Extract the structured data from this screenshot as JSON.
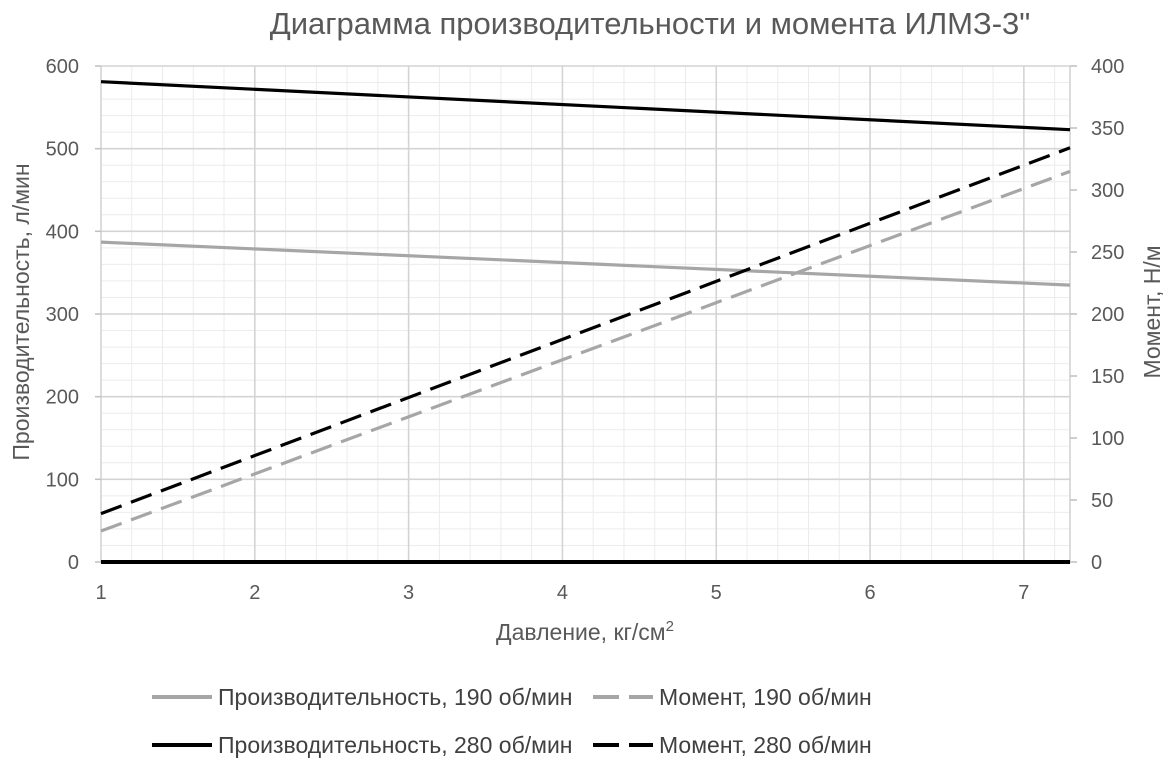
{
  "chart_data": {
    "type": "line",
    "title": "Диаграмма производительности и момента ИЛМЗ-3\"",
    "xlabel": "Давление, кг/см",
    "xlabel_sup": "2",
    "ylabel": "Производительность, л/мин",
    "y2label": "Момент, Н/м",
    "xlim": [
      1,
      7.3
    ],
    "ylim": [
      0,
      600
    ],
    "y2lim": [
      0,
      400
    ],
    "xticks": [
      "1",
      "2",
      "3",
      "4",
      "5",
      "6",
      "7"
    ],
    "yticks": [
      "0",
      "100",
      "200",
      "300",
      "400",
      "500",
      "600"
    ],
    "y2ticks": [
      "0",
      "50",
      "100",
      "150",
      "200",
      "250",
      "300",
      "350",
      "400"
    ],
    "grid": true,
    "legend_position": "bottom",
    "series": [
      {
        "name": "Производительность, 190 об/мин",
        "axis": "left",
        "style": "solid",
        "color": "#a6a6a6",
        "x": [
          1,
          7.3
        ],
        "y": [
          387,
          335
        ]
      },
      {
        "name": "Момент, 190 об/мин",
        "axis": "right",
        "style": "dashed",
        "color": "#a6a6a6",
        "x": [
          1,
          7.3
        ],
        "y": [
          25,
          315
        ]
      },
      {
        "name": "Производительность, 280 об/мин",
        "axis": "left",
        "style": "solid",
        "color": "#000000",
        "x": [
          1,
          7.3
        ],
        "y": [
          581,
          523
        ]
      },
      {
        "name": "Момент, 280 об/мин",
        "axis": "right",
        "style": "dashed",
        "color": "#000000",
        "x": [
          1,
          7.3
        ],
        "y": [
          39,
          334
        ]
      }
    ]
  }
}
